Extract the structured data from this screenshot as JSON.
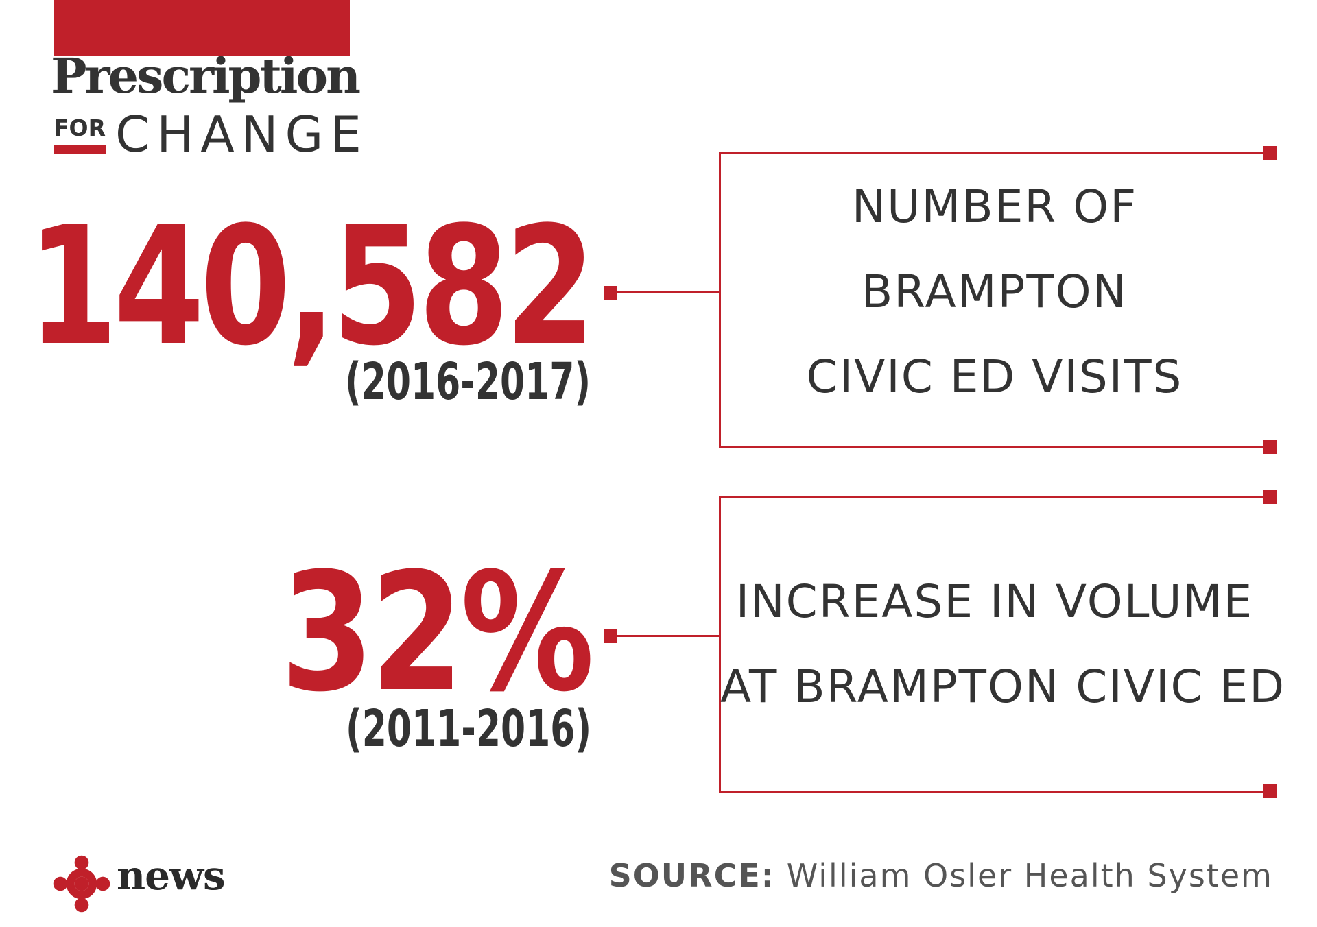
{
  "brand": {
    "title": "Prescription",
    "for": "FOR",
    "change": "CHANGE",
    "accent_color": "#c0202a"
  },
  "stats": [
    {
      "value": "140,582",
      "period": "(2016-2017)",
      "description": [
        "NUMBER OF",
        "BRAMPTON",
        "CIVIC ED VISITS"
      ]
    },
    {
      "value": "32%",
      "period": "(2011-2016)",
      "description": [
        "INCREASE IN VOLUME",
        "AT BRAMPTON CIVIC ED"
      ]
    }
  ],
  "footer": {
    "news_label": "news",
    "logo_icon": "cbc-gem-icon",
    "source_label": "SOURCE:",
    "source_value": "William Osler Health System"
  }
}
